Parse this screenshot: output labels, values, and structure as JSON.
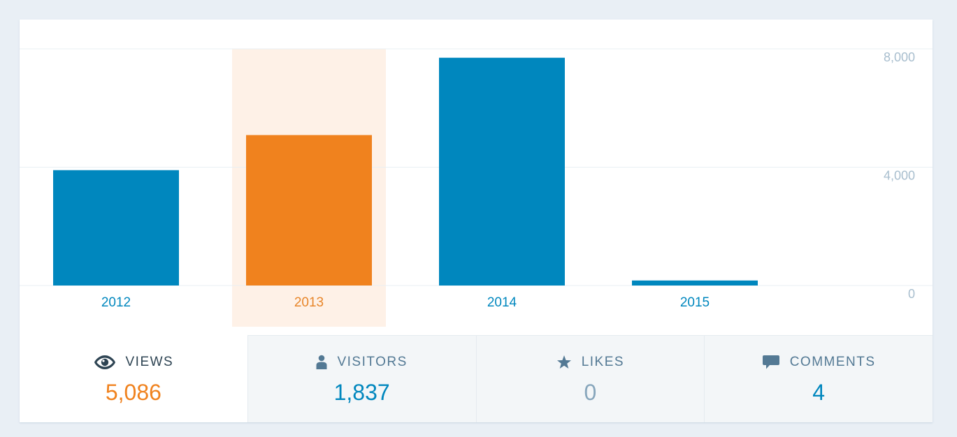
{
  "chart_data": {
    "type": "bar",
    "categories": [
      "2012",
      "2013",
      "2014",
      "2015"
    ],
    "values": [
      3900,
      5086,
      7700,
      170
    ],
    "highlighted": "2013",
    "y_ticks": [
      "0",
      "4,000",
      "8,000"
    ],
    "ylim": [
      0,
      8000
    ],
    "grid": true,
    "colors": {
      "bar": "#0087be",
      "highlight": "#f0821e",
      "highlight_bg": "#fef1e7",
      "label": "#0087be",
      "highlight_label": "#e8862a",
      "tick": "#a8bece",
      "grid": "#e9eff3"
    }
  },
  "tabs": [
    {
      "id": "views",
      "label": "VIEWS",
      "value": "5,086",
      "icon": "eye-icon"
    },
    {
      "id": "visitors",
      "label": "VISITORS",
      "value": "1,837",
      "icon": "person-icon"
    },
    {
      "id": "likes",
      "label": "LIKES",
      "value": "0",
      "icon": "star-icon"
    },
    {
      "id": "comments",
      "label": "COMMENTS",
      "value": "4",
      "icon": "speech-bubble-icon"
    }
  ]
}
